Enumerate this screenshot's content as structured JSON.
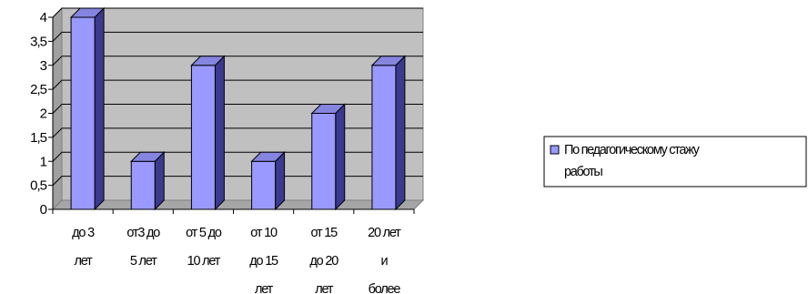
{
  "chart_data": {
    "type": "bar",
    "style": "3d-column",
    "title": "",
    "xlabel": "",
    "ylabel": "",
    "ylim": [
      0,
      4
    ],
    "y_step": 0.5,
    "y_ticks": [
      "0",
      "0,5",
      "1",
      "1,5",
      "2",
      "2,5",
      "3",
      "3,5",
      "4"
    ],
    "grid": true,
    "legend_position": "right",
    "categories": [
      [
        "до 3",
        "лет"
      ],
      [
        "от3 до",
        "5 лет"
      ],
      [
        "от 5 до",
        "10 лет"
      ],
      [
        "от 10",
        "до 15",
        "лет"
      ],
      [
        "от 15",
        "до 20",
        "лет"
      ],
      [
        "20 лет",
        "и",
        "более"
      ]
    ],
    "series": [
      {
        "name": [
          "По педагогическому стажу",
          "работы"
        ],
        "values": [
          4,
          1,
          3,
          1,
          2,
          3
        ],
        "color": "#9999ff"
      }
    ],
    "colors": {
      "plot_background": "#c0c0c0",
      "floor": "#a6a6a6",
      "gridline": "#000000",
      "bar_front": "#9999ff",
      "bar_side": "#3a3a8f",
      "bar_top": "#8585e0"
    }
  }
}
